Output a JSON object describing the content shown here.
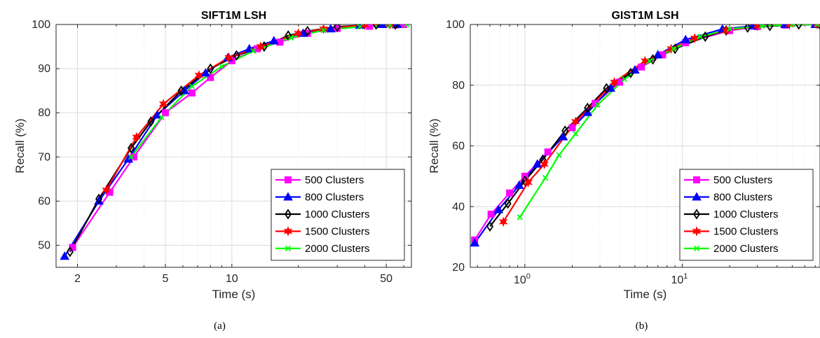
{
  "chart_data": [
    {
      "type": "line",
      "title": "SIFT1M LSH",
      "xlabel": "Time (s)",
      "ylabel": "Recall (%)",
      "xscale": "log",
      "xlim": [
        1.6,
        65
      ],
      "ylim": [
        45,
        100
      ],
      "xticks": [
        2,
        5,
        10,
        50
      ],
      "xtick_labels": [
        "2",
        "5",
        "10",
        "50"
      ],
      "yticks": [
        50,
        60,
        70,
        80,
        90,
        100
      ],
      "ytick_labels": [
        "50",
        "60",
        "70",
        "80",
        "90",
        "100"
      ],
      "grid": true,
      "legend_position": "bottom-right",
      "caption": "(a)",
      "series": [
        {
          "name": "500 Clusters",
          "color": "#ff00ff",
          "marker": "square",
          "x": [
            1.9,
            2.8,
            3.6,
            5.0,
            6.6,
            8.0,
            10.0,
            13.0,
            16.5,
            22.0,
            30.0,
            42.0,
            55.0,
            60.0
          ],
          "y": [
            49.5,
            62,
            70,
            80,
            84.5,
            88,
            91.8,
            94.5,
            96,
            98,
            99.1,
            99.6,
            99.9,
            100
          ]
        },
        {
          "name": "800 Clusters",
          "color": "#0000ff",
          "marker": "triangle",
          "x": [
            1.75,
            2.5,
            3.4,
            4.6,
            6.1,
            7.6,
            9.6,
            12.0,
            15.5,
            21.0,
            28.0,
            38.0,
            48.0,
            56.0
          ],
          "y": [
            47.5,
            60,
            69.5,
            79.5,
            85,
            89,
            92.5,
            94.5,
            96.3,
            98,
            99,
            99.8,
            100,
            100
          ]
        },
        {
          "name": "1000 Clusters",
          "color": "#000000",
          "marker": "diamond",
          "x": [
            1.85,
            2.5,
            3.5,
            4.3,
            5.9,
            8.0,
            10.5,
            14.0,
            18.0,
            22.0,
            30.0,
            45.0,
            55.0
          ],
          "y": [
            48.5,
            60.5,
            72,
            78,
            85,
            90,
            93,
            95,
            97.5,
            98.5,
            99.5,
            100,
            100
          ]
        },
        {
          "name": "1500 Clusters",
          "color": "#ff0000",
          "marker": "star",
          "x": [
            2.7,
            3.7,
            4.9,
            7.1,
            9.7,
            13.5,
            20.0,
            26.0,
            40.0,
            52.0
          ],
          "y": [
            62.5,
            74.5,
            82,
            88.5,
            92.5,
            95,
            98,
            99,
            99.9,
            100
          ]
        },
        {
          "name": "2000 Clusters",
          "color": "#00ff00",
          "marker": "x",
          "x": [
            3.5,
            4.8,
            6.6,
            9.0,
            12.5,
            18.5,
            26.0,
            38.0,
            52.0,
            62.0
          ],
          "y": [
            70,
            79,
            86,
            90.5,
            94,
            97,
            98.7,
            99.5,
            99.8,
            100
          ]
        }
      ]
    },
    {
      "type": "line",
      "title": "GIST1M LSH",
      "xlabel": "Time (s)",
      "ylabel": "Recall (%)",
      "xscale": "log",
      "xlim": [
        0.45,
        75
      ],
      "ylim": [
        20,
        100
      ],
      "xticks": [
        1,
        10
      ],
      "xtick_base": "10",
      "xtick_exponents": [
        "0",
        "1"
      ],
      "yticks": [
        20,
        40,
        60,
        80,
        100
      ],
      "ytick_labels": [
        "20",
        "40",
        "60",
        "80",
        "100"
      ],
      "grid": true,
      "legend_position": "bottom-right",
      "caption": "(b)",
      "series": [
        {
          "name": "500 Clusters",
          "color": "#ff00ff",
          "marker": "square",
          "x": [
            0.48,
            0.61,
            0.8,
            1.0,
            1.4,
            2.0,
            2.8,
            4.0,
            5.5,
            7.5,
            10.5,
            20.0,
            30.0,
            45.0,
            70.0
          ],
          "y": [
            29,
            37.5,
            44.5,
            50,
            58,
            66,
            74,
            81,
            86,
            90,
            94,
            98,
            99.3,
            99.8,
            100
          ]
        },
        {
          "name": "800 Clusters",
          "color": "#0000ff",
          "marker": "triangle",
          "x": [
            0.48,
            0.68,
            0.92,
            1.2,
            1.75,
            2.5,
            3.5,
            5.0,
            7.0,
            10.5,
            18.0,
            28.0,
            45.0,
            70.0
          ],
          "y": [
            28,
            39,
            47,
            54,
            63,
            71,
            79,
            85,
            90,
            95,
            98.5,
            99.5,
            100,
            100
          ]
        },
        {
          "name": "1000 Clusters",
          "color": "#000000",
          "marker": "diamond",
          "x": [
            0.6,
            0.78,
            1.0,
            1.3,
            1.8,
            2.5,
            3.3,
            4.7,
            6.5,
            9.0,
            14.0,
            19.0,
            26.0,
            36.0,
            55.0,
            75.0
          ],
          "y": [
            33.5,
            41,
            48.5,
            55.5,
            65,
            72.5,
            79,
            84,
            88.5,
            92,
            96,
            98,
            99,
            99.5,
            100,
            100
          ]
        },
        {
          "name": "1500 Clusters",
          "color": "#ff0000",
          "marker": "star",
          "x": [
            0.73,
            1.05,
            1.33,
            2.1,
            3.7,
            5.8,
            8.5,
            12.0,
            19.0,
            30.0,
            48.0,
            72.0
          ],
          "y": [
            35,
            48,
            54,
            68,
            81,
            88,
            92,
            95.5,
            98,
            99.5,
            100,
            100
          ]
        },
        {
          "name": "2000 Clusters",
          "color": "#00ff00",
          "marker": "x",
          "x": [
            0.93,
            1.35,
            1.65,
            2.1,
            2.9,
            4.3,
            6.2,
            8.8,
            13.0,
            20.0,
            32.0,
            50.0,
            72.0
          ],
          "y": [
            36.5,
            49.5,
            57,
            64,
            73.5,
            82,
            88,
            92,
            96,
            98.5,
            99.5,
            100,
            100
          ]
        }
      ]
    }
  ]
}
